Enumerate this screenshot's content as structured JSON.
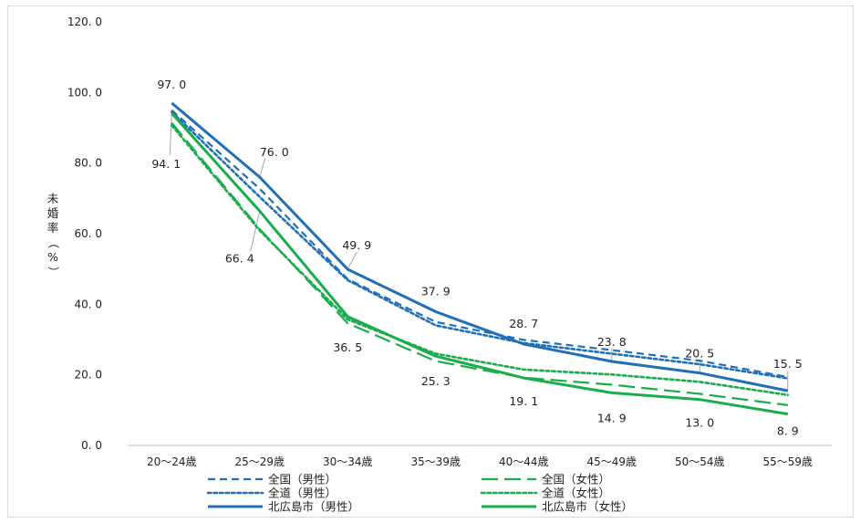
{
  "chart_data": {
    "type": "line",
    "ylabel": "未婚率（%）",
    "ylim": [
      0,
      120
    ],
    "yticks": [
      "0. 0",
      "20. 0",
      "40. 0",
      "60. 0",
      "80. 0",
      "100. 0",
      "120. 0"
    ],
    "categories": [
      "20～24歳",
      "25～29歳",
      "30～34歳",
      "35～39歳",
      "40～44歳",
      "45～49歳",
      "50～54歳",
      "55～59歳"
    ],
    "grid": false,
    "legend_position": "bottom",
    "series": [
      {
        "name": "全国（男性）",
        "color": "#1f6fb9",
        "style": "dash",
        "values": [
          95.0,
          72.7,
          47.1,
          35.0,
          29.9,
          27.0,
          24.0,
          19.4
        ]
      },
      {
        "name": "全国（女性）",
        "color": "#1aad4b",
        "style": "longdash",
        "values": [
          91.4,
          61.3,
          34.6,
          23.9,
          19.2,
          17.2,
          14.6,
          11.4
        ]
      },
      {
        "name": "全道（男性）",
        "color": "#1f6fb9",
        "style": "dot",
        "values": [
          94.5,
          70.4,
          46.8,
          34.0,
          29.0,
          26.0,
          23.0,
          19.0
        ]
      },
      {
        "name": "全道（女性）",
        "color": "#1aad4b",
        "style": "dot",
        "values": [
          90.7,
          60.9,
          35.7,
          26.0,
          21.5,
          20.1,
          18.0,
          14.3
        ]
      },
      {
        "name": "北広島市（男性）",
        "color": "#1f6fb9",
        "style": "solid",
        "values": [
          97.0,
          76.0,
          49.9,
          37.9,
          28.7,
          23.8,
          20.5,
          15.5
        ]
      },
      {
        "name": "北広島市（女性）",
        "color": "#1aad4b",
        "style": "solid",
        "values": [
          94.1,
          66.4,
          36.5,
          25.3,
          19.1,
          14.9,
          13.0,
          8.9
        ]
      }
    ],
    "data_labels": [
      {
        "series": 4,
        "index": 0,
        "text": "97. 0"
      },
      {
        "series": 5,
        "index": 0,
        "text": "94. 1"
      },
      {
        "series": 4,
        "index": 1,
        "text": "76. 0"
      },
      {
        "series": 5,
        "index": 1,
        "text": "66. 4"
      },
      {
        "series": 4,
        "index": 2,
        "text": "49. 9"
      },
      {
        "series": 5,
        "index": 2,
        "text": "36. 5"
      },
      {
        "series": 4,
        "index": 3,
        "text": "37. 9"
      },
      {
        "series": 5,
        "index": 3,
        "text": "25. 3"
      },
      {
        "series": 4,
        "index": 4,
        "text": "28. 7"
      },
      {
        "series": 5,
        "index": 4,
        "text": "19. 1"
      },
      {
        "series": 4,
        "index": 5,
        "text": "23. 8"
      },
      {
        "series": 5,
        "index": 5,
        "text": "14. 9"
      },
      {
        "series": 4,
        "index": 6,
        "text": "20. 5"
      },
      {
        "series": 5,
        "index": 6,
        "text": "13. 0"
      },
      {
        "series": 4,
        "index": 7,
        "text": "15. 5"
      },
      {
        "series": 5,
        "index": 7,
        "text": "8. 9"
      }
    ]
  }
}
